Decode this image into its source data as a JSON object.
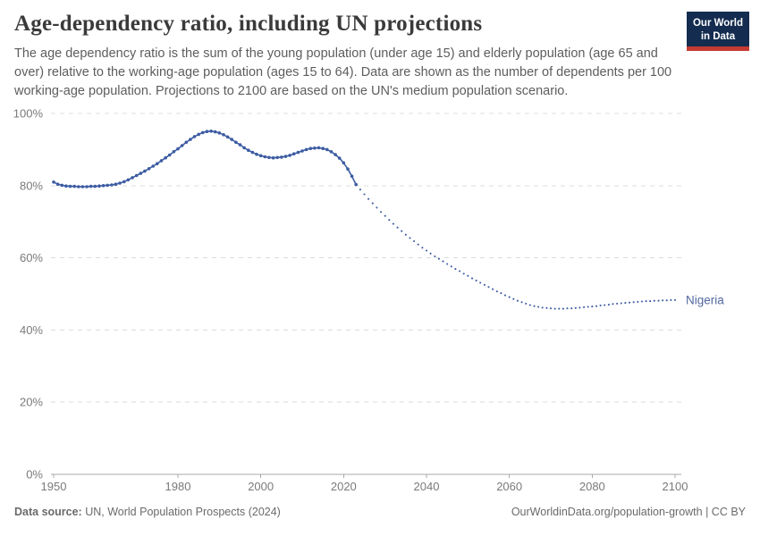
{
  "header": {
    "title": "Age-dependency ratio, including UN projections",
    "subtitle": "The age dependency ratio is the sum of the young population (under age 15) and elderly population (age 65 and over) relative to the working-age population (ages 15 to 64). Data are shown as the number of dependents per 100 working-age population. Projections to 2100 are based on the UN's medium population scenario.",
    "logo": {
      "line1": "Our World",
      "line2": "in Data",
      "bg_color": "#132c4f",
      "bar_color": "#c43a32",
      "text_color": "#ffffff"
    }
  },
  "chart_data": {
    "type": "line",
    "title": "Age-dependency ratio, including UN projections",
    "entity": "Nigeria",
    "unit": "%",
    "xlim": [
      1950,
      2100
    ],
    "ylim": [
      0,
      100
    ],
    "grid": true,
    "legend_position": "end-of-line-label",
    "xticks": [
      1950,
      1980,
      2000,
      2020,
      2040,
      2060,
      2080,
      2100
    ],
    "xtick_labels": [
      "1950",
      "1980",
      "2000",
      "2020",
      "2040",
      "2060",
      "2080",
      "2100"
    ],
    "yticks": [
      0,
      20,
      40,
      60,
      80,
      100
    ],
    "ytick_labels": [
      "0%",
      "20%",
      "40%",
      "60%",
      "80%",
      "100%"
    ],
    "colors": {
      "line": "#3d5ca2",
      "entity_label": "#52699f",
      "gridline": "#dcdcdc",
      "axis": "#a9a9a9",
      "tick_label": "#7a7a7a"
    },
    "series": [
      {
        "name": "Nigeria — estimates",
        "style": "solid-with-markers",
        "start_year": 1950,
        "end_year": 2023,
        "values": [
          81.0,
          80.4,
          80.1,
          79.9,
          79.8,
          79.8,
          79.7,
          79.7,
          79.7,
          79.8,
          79.8,
          79.9,
          80.0,
          80.1,
          80.2,
          80.4,
          80.7,
          81.1,
          81.6,
          82.2,
          82.8,
          83.4,
          84.0,
          84.7,
          85.4,
          86.1,
          86.9,
          87.7,
          88.5,
          89.4,
          90.2,
          91.1,
          92.0,
          92.8,
          93.6,
          94.2,
          94.7,
          95.0,
          95.1,
          94.9,
          94.6,
          94.1,
          93.5,
          92.8,
          92.0,
          91.3,
          90.5,
          89.8,
          89.2,
          88.7,
          88.3,
          88.0,
          87.8,
          87.7,
          87.8,
          87.9,
          88.1,
          88.4,
          88.8,
          89.2,
          89.6,
          90.0,
          90.3,
          90.4,
          90.5,
          90.3,
          90.0,
          89.4,
          88.6,
          87.6,
          86.3,
          84.6,
          82.6,
          80.3
        ]
      },
      {
        "name": "Nigeria — UN medium projection",
        "style": "dotted",
        "start_year": 2024,
        "end_year": 2100,
        "values": [
          78.9,
          77.6,
          76.3,
          75.1,
          73.9,
          72.7,
          71.6,
          70.5,
          69.4,
          68.4,
          67.4,
          66.4,
          65.5,
          64.6,
          63.7,
          62.8,
          62.0,
          61.2,
          60.4,
          59.7,
          59.0,
          58.3,
          57.6,
          56.9,
          56.3,
          55.6,
          55.0,
          54.3,
          53.7,
          53.1,
          52.5,
          51.9,
          51.3,
          50.7,
          50.2,
          49.6,
          49.1,
          48.6,
          48.1,
          47.7,
          47.3,
          46.9,
          46.6,
          46.4,
          46.2,
          46.1,
          46.0,
          45.9,
          45.9,
          45.9,
          46.0,
          46.0,
          46.1,
          46.2,
          46.3,
          46.4,
          46.5,
          46.6,
          46.8,
          46.9,
          47.0,
          47.2,
          47.3,
          47.4,
          47.5,
          47.6,
          47.7,
          47.8,
          47.9,
          48.0,
          48.0,
          48.1,
          48.1,
          48.2,
          48.2,
          48.3,
          48.3
        ]
      }
    ]
  },
  "footer": {
    "source_label": "Data source:",
    "source_text": "UN, World Population Prospects (2024)",
    "credit": "OurWorldinData.org/population-growth | CC BY"
  }
}
